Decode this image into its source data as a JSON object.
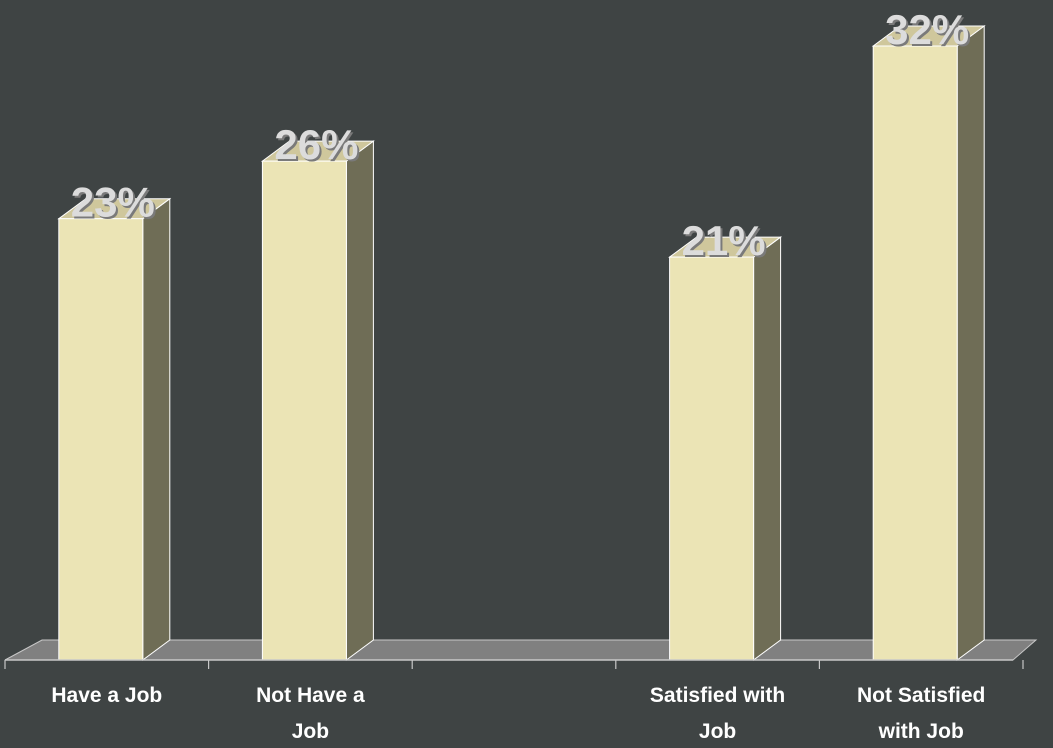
{
  "chart_data": {
    "type": "bar",
    "style": "3d-column",
    "categories": [
      "Have a Job",
      "Not Have a Job",
      "",
      "Satisfied with Job",
      "Not Satisfied with Job"
    ],
    "category_lines": [
      [
        "Have a Job"
      ],
      [
        "Not Have a",
        "Job"
      ],
      [],
      [
        "Satisfied with",
        "Job"
      ],
      [
        "Not Satisfied",
        "with Job"
      ]
    ],
    "values": [
      23,
      26,
      null,
      21,
      32
    ],
    "data_labels": [
      "23%",
      "26%",
      "",
      "21%",
      "32%"
    ],
    "value_format": "percent",
    "title": "",
    "xlabel": "",
    "ylabel": "",
    "ylim": [
      0,
      34
    ],
    "grid": false,
    "legend": "none",
    "colors": {
      "background": "#3f4444",
      "bar_front": "#ebe4b5",
      "bar_side": "#6f6d56",
      "bar_top": "#cfc79c",
      "bar_edge": "#ffffff",
      "floor": "#808080",
      "axis": "#c8c8c8",
      "label_text": "#ffffff",
      "data_label_text": "#dcdcdc",
      "data_label_shadow": "#7a7a7a"
    }
  }
}
